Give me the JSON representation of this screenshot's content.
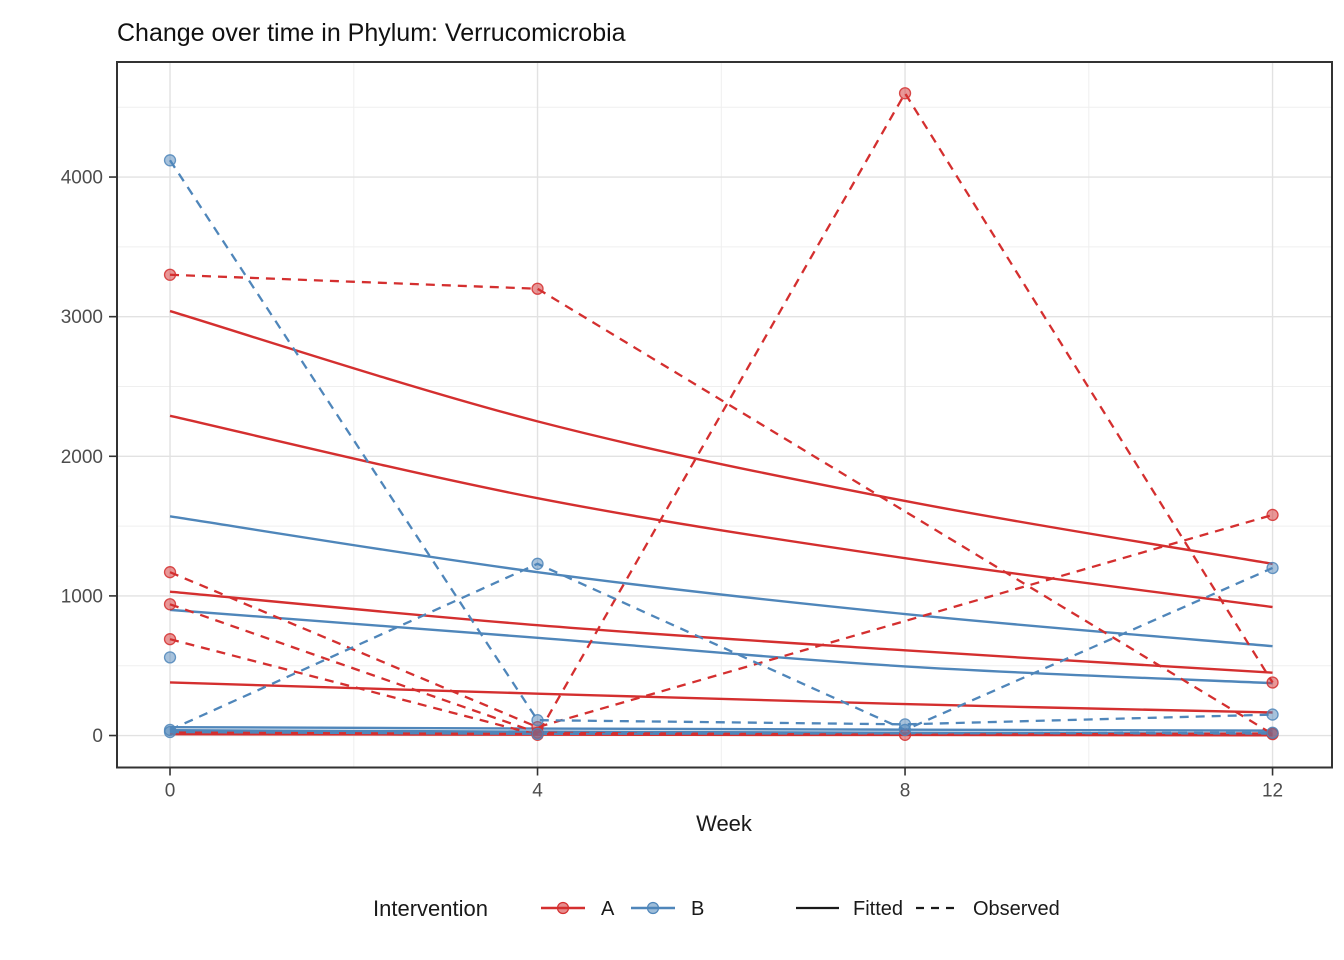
{
  "chart_data": {
    "type": "line",
    "title": "Change over time in Phylum: Verrucomicrobia",
    "xlabel": "Week",
    "ylabel": "",
    "x": [
      0,
      4,
      8,
      12
    ],
    "x_tick_labels": [
      "0",
      "4",
      "8",
      "12"
    ],
    "y_ticks": [
      0,
      1000,
      2000,
      3000,
      4000
    ],
    "y_tick_labels": [
      "0",
      "1000",
      "2000",
      "3000",
      "4000"
    ],
    "y_minor_gridlines": [
      500,
      1500,
      2500,
      3500,
      4500
    ],
    "x_minor_gridlines": [
      2,
      6,
      10
    ],
    "xlim": [
      -0.577,
      12.647
    ],
    "ylim": [
      -229,
      4824
    ],
    "grid": "on",
    "legend_position": "bottom",
    "colors": {
      "A": "#d42f2f",
      "B": "#4f86ba",
      "linetype_key": "#1a1a1a",
      "grid_major": "#e2e2e2",
      "grid_minor": "#efefef",
      "panel_border": "#333333",
      "axis_text": "#4d4d4d"
    },
    "legend": {
      "title": "Intervention",
      "groups": [
        {
          "label": "A"
        },
        {
          "label": "B"
        }
      ],
      "linetypes": [
        {
          "label": "Fitted"
        },
        {
          "label": "Observed"
        }
      ]
    },
    "series": [
      {
        "group": "A",
        "kind": "fitted",
        "values": [
          3040,
          2250,
          1680,
          1230
        ]
      },
      {
        "group": "A",
        "kind": "fitted",
        "values": [
          2290,
          1700,
          1270,
          920
        ]
      },
      {
        "group": "A",
        "kind": "fitted",
        "values": [
          1030,
          790,
          610,
          450
        ]
      },
      {
        "group": "A",
        "kind": "fitted",
        "values": [
          380,
          300,
          225,
          165
        ]
      },
      {
        "group": "A",
        "kind": "fitted",
        "values": [
          25,
          18,
          12,
          8
        ]
      },
      {
        "group": "A",
        "kind": "fitted",
        "values": [
          10,
          6,
          4,
          2
        ]
      },
      {
        "group": "B",
        "kind": "fitted",
        "values": [
          1570,
          1170,
          870,
          640
        ]
      },
      {
        "group": "B",
        "kind": "fitted",
        "values": [
          900,
          700,
          495,
          375
        ]
      },
      {
        "group": "B",
        "kind": "fitted",
        "values": [
          60,
          50,
          42,
          35
        ]
      },
      {
        "group": "B",
        "kind": "fitted",
        "values": [
          38,
          28,
          20,
          14
        ]
      },
      {
        "group": "A",
        "kind": "observed",
        "values": [
          3300,
          3200,
          null,
          10
        ]
      },
      {
        "group": "A",
        "kind": "observed",
        "values": [
          690,
          5,
          4600,
          380
        ]
      },
      {
        "group": "A",
        "kind": "observed",
        "values": [
          1170,
          60,
          null,
          1580
        ]
      },
      {
        "group": "A",
        "kind": "observed",
        "values": [
          940,
          20,
          5,
          15
        ]
      },
      {
        "group": "B",
        "kind": "observed",
        "values": [
          4120,
          110,
          80,
          150
        ]
      },
      {
        "group": "B",
        "kind": "observed",
        "values": [
          560,
          null,
          null,
          null
        ]
      },
      {
        "group": "B",
        "kind": "observed",
        "values": [
          40,
          1230,
          40,
          1200
        ]
      },
      {
        "group": "B",
        "kind": "observed",
        "values": [
          25,
          12,
          null,
          20
        ]
      }
    ]
  }
}
